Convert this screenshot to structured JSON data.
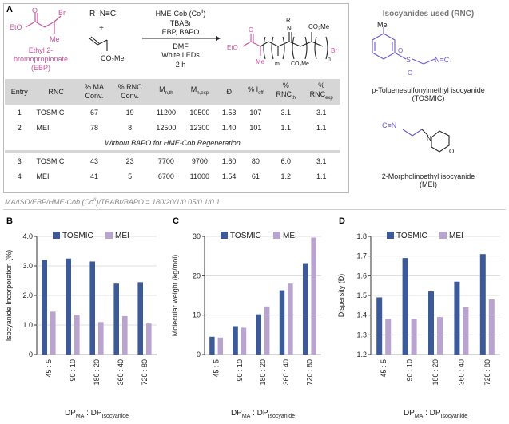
{
  "panel_a": {
    "letter": "A",
    "ebp_label_1": "Ethyl 2-",
    "ebp_label_2": "bromopropionate",
    "ebp_label_3": "(EBP)",
    "reagent_rnc": "R–N≡C",
    "plus": "+",
    "conditions": [
      "HME-Cob (Co",
      "TBABr",
      "EBP, BAPO",
      "DMF",
      "White LEDs",
      "2 h"
    ],
    "cob_superscript": "II",
    "table": {
      "headers": [
        "Entry",
        "RNC",
        "% MA Conv.",
        "% RNC Conv.",
        "Mn,th",
        "Mn,exp",
        "Đ",
        "% Ieff",
        "% RNCth",
        "% RNCexp"
      ],
      "rows": [
        [
          "1",
          "TOSMIC",
          "67",
          "19",
          "11200",
          "10500",
          "1.53",
          "107",
          "3.1",
          "3.1"
        ],
        [
          "2",
          "MEI",
          "78",
          "8",
          "12500",
          "12300",
          "1.40",
          "101",
          "1.1",
          "1.1"
        ]
      ],
      "note": "Without BAPO for HME-Cob Regeneration",
      "rows2": [
        [
          "3",
          "TOSMIC",
          "43",
          "23",
          "7700",
          "9700",
          "1.60",
          "80",
          "6.0",
          "3.1"
        ],
        [
          "4",
          "MEI",
          "41",
          "5",
          "6700",
          "11000",
          "1.54",
          "61",
          "1.2",
          "1.1"
        ]
      ]
    },
    "ratio_note": "MA/ISO/EBP/HME-Cob (Co",
    "ratio_note_tail": ")/TBABr/BAPO = 180/20/1/0.05/0.1/0.1",
    "isocyanides_header": "Isocyanides used (RNC)",
    "tosmic_name_1": "p-Toluenesulfonylmethyl isocyanide",
    "tosmic_name_2": "(TOSMIC)",
    "mei_name_1": "2-Morpholinoethyl isocyanide",
    "mei_name_2": "(MEI)"
  },
  "colors": {
    "tosmic": "#3d5a98",
    "mei": "#b9a4d0",
    "pink": "#c9549c",
    "purple": "#6a5acd"
  },
  "chart_data": [
    {
      "panel": "B",
      "type": "bar",
      "categories": [
        "45 : 5",
        "90 : 10",
        "180 : 20",
        "360 : 40",
        "720 : 80"
      ],
      "series": [
        {
          "name": "TOSMIC",
          "values": [
            3.2,
            3.25,
            3.15,
            2.4,
            2.45
          ]
        },
        {
          "name": "MEI",
          "values": [
            1.45,
            1.35,
            1.1,
            1.3,
            1.05
          ]
        }
      ],
      "ylabel": "Isocyanide Incorporation (%)",
      "xlabel": "DPMA : DPIsocyanide",
      "ylim": [
        0,
        4.0
      ],
      "yticks": [
        "0",
        "1.0",
        "2.0",
        "3.0",
        "4.0"
      ],
      "legend": "top"
    },
    {
      "panel": "C",
      "type": "bar",
      "categories": [
        "45 : 5",
        "90 : 10",
        "180 : 20",
        "360 : 40",
        "720 : 80"
      ],
      "series": [
        {
          "name": "TOSMIC",
          "values": [
            4.5,
            7.2,
            10.2,
            16.3,
            23.2
          ]
        },
        {
          "name": "MEI",
          "values": [
            4.3,
            6.8,
            12.2,
            18.0,
            29.7
          ]
        }
      ],
      "ylabel": "Molecular weight (kg/mol)",
      "xlabel": "DPMA : DPIsocyanide",
      "ylim": [
        0,
        30
      ],
      "yticks": [
        "0",
        "10",
        "20",
        "30"
      ],
      "legend": "top"
    },
    {
      "panel": "D",
      "type": "bar",
      "categories": [
        "45 : 5",
        "90 : 10",
        "180 : 20",
        "360 : 40",
        "720 : 80"
      ],
      "series": [
        {
          "name": "TOSMIC",
          "values": [
            1.49,
            1.69,
            1.52,
            1.57,
            1.71
          ]
        },
        {
          "name": "MEI",
          "values": [
            1.38,
            1.38,
            1.39,
            1.44,
            1.48
          ]
        }
      ],
      "ylabel": "Dispersity (Đ)",
      "xlabel": "DPMA : DPIsocyanide",
      "ylim": [
        1.2,
        1.8
      ],
      "yticks": [
        "1.2",
        "1.3",
        "1.4",
        "1.5",
        "1.6",
        "1.7",
        "1.8"
      ],
      "legend": "top"
    }
  ]
}
